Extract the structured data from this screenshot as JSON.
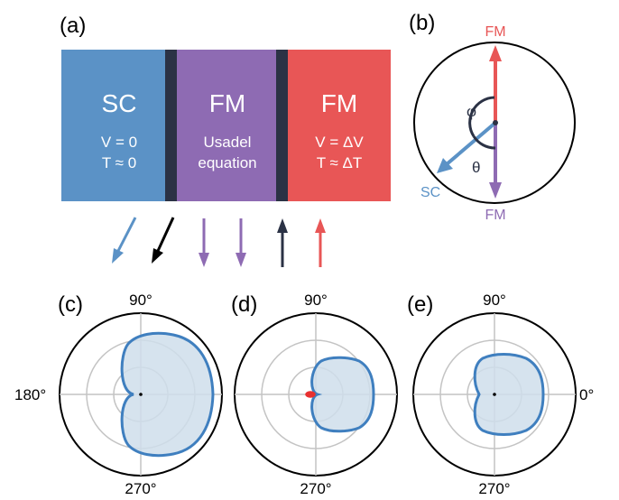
{
  "panels": {
    "a": {
      "label": "(a)",
      "blocks": [
        {
          "title": "SC",
          "line1": "V = 0",
          "line2": "T ≈ 0",
          "color": "#5b92c6"
        },
        {
          "title": "FM",
          "line1": "Usadel",
          "line2": "equation",
          "color": "#8e6bb3"
        },
        {
          "title": "FM",
          "line1": "V = ΔV",
          "line2": "T ≈ ΔT",
          "color": "#e85656"
        }
      ],
      "barrier_color": "#2b3245"
    },
    "b": {
      "label": "(b)",
      "top_label": "FM",
      "bottom_label": "FM",
      "sc_label": "SC",
      "phi_label": "φ",
      "theta_label": "θ"
    },
    "c": {
      "label": "(c)",
      "top": "90°",
      "left": "180°",
      "bottom": "270°"
    },
    "d": {
      "label": "(d)",
      "top": "90°",
      "bottom": "270°"
    },
    "e": {
      "label": "(e)",
      "top": "90°",
      "right": "0°",
      "bottom": "270°"
    }
  },
  "colors": {
    "sc_blue": "#5b92c6",
    "fm_purple": "#8e6bb3",
    "fm_red": "#e85656",
    "dark": "#2b3245",
    "black": "#000000",
    "curve_blue": "#3f7fbf",
    "fill_blue": "#cfdeeb",
    "grid_gray": "#c4c4c4"
  }
}
